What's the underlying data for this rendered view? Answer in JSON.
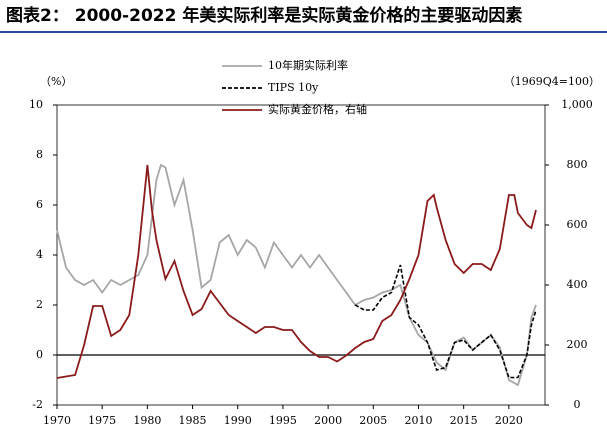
{
  "chart_data": {
    "type": "line",
    "title": "图表2： 2000-2022 年美实际利率是实际黄金价格的主要驱动因素",
    "y_label": "（%）",
    "y2_label": "（1969Q4=100）",
    "xlim": [
      1970,
      2024
    ],
    "xticks": [
      1970,
      1975,
      1980,
      1985,
      1990,
      1995,
      2000,
      2005,
      2010,
      2015,
      2020
    ],
    "ylim": [
      -2,
      10
    ],
    "yticks": [
      -2,
      0,
      2,
      4,
      6,
      8,
      10
    ],
    "y2lim": [
      0,
      1000
    ],
    "y2ticks": [
      0,
      200,
      400,
      600,
      800,
      {
        "value": 1000,
        "label": "1,000"
      }
    ],
    "zero_line": true,
    "grid": false,
    "legend": "top",
    "series": [
      {
        "name": "10年期实际利率",
        "color": "#a6a6a6",
        "dash": false,
        "x": [
          1970,
          1971,
          1972,
          1973,
          1974,
          1975,
          1976,
          1977,
          1978,
          1979,
          1980,
          1981,
          1981.5,
          1982,
          1983,
          1984,
          1985,
          1986,
          1987,
          1988,
          1989,
          1990,
          1991,
          1992,
          1993,
          1994,
          1995,
          1996,
          1997,
          1998,
          1999,
          2000,
          2001,
          2002,
          2003,
          2004,
          2005,
          2006,
          2007,
          2008,
          2009,
          2010,
          2011,
          2012,
          2013,
          2014,
          2015,
          2016,
          2017,
          2018,
          2019,
          2020,
          2021,
          2022,
          2022.5,
          2023
        ],
        "values": [
          5,
          3.5,
          3,
          2.8,
          3,
          2.5,
          3,
          2.8,
          3,
          3.2,
          4,
          7,
          7.6,
          7.5,
          6,
          7,
          5,
          2.7,
          3,
          4.5,
          4.8,
          4,
          4.6,
          4.3,
          3.5,
          4.5,
          4,
          3.5,
          4,
          3.5,
          4,
          3.5,
          3,
          2.5,
          2,
          2.2,
          2.3,
          2.5,
          2.6,
          2.8,
          1.5,
          0.8,
          0.5,
          -0.3,
          -0.6,
          0.5,
          0.7,
          0.2,
          0.5,
          0.8,
          0.3,
          -1,
          -1.2,
          0,
          1.5,
          2
        ]
      },
      {
        "name": "TIPS 10y",
        "color": "#000000",
        "dash": true,
        "x": [
          2003,
          2004,
          2005,
          2006,
          2007,
          2008,
          2009,
          2010,
          2011,
          2012,
          2013,
          2014,
          2015,
          2016,
          2017,
          2018,
          2019,
          2020,
          2021,
          2022,
          2022.5,
          2023
        ],
        "values": [
          2,
          1.8,
          1.8,
          2.3,
          2.5,
          3.6,
          1.5,
          1.2,
          0.5,
          -0.6,
          -0.5,
          0.5,
          0.6,
          0.2,
          0.5,
          0.8,
          0.2,
          -0.9,
          -0.9,
          0,
          1.2,
          1.8
        ]
      },
      {
        "name": "实际黄金价格，右轴",
        "color": "#8b1a1a",
        "dash": false,
        "axis": "y2",
        "x": [
          1970,
          1972,
          1973,
          1974,
          1975,
          1976,
          1977,
          1978,
          1979,
          1980,
          1980.5,
          1981,
          1982,
          1983,
          1984,
          1985,
          1986,
          1987,
          1988,
          1989,
          1990,
          1991,
          1992,
          1993,
          1994,
          1995,
          1996,
          1997,
          1998,
          1999,
          2000,
          2001,
          2002,
          2003,
          2004,
          2005,
          2006,
          2007,
          2008,
          2009,
          2010,
          2011,
          2011.7,
          2012,
          2013,
          2014,
          2015,
          2016,
          2017,
          2018,
          2019,
          2020,
          2020.6,
          2021,
          2022,
          2022.5,
          2023
        ],
        "values": [
          90,
          100,
          200,
          330,
          330,
          230,
          250,
          300,
          500,
          800,
          650,
          550,
          420,
          480,
          380,
          300,
          320,
          380,
          340,
          300,
          280,
          260,
          240,
          260,
          260,
          250,
          250,
          210,
          180,
          160,
          160,
          145,
          165,
          190,
          210,
          220,
          280,
          300,
          350,
          420,
          500,
          680,
          700,
          660,
          550,
          470,
          440,
          470,
          470,
          450,
          520,
          700,
          700,
          640,
          600,
          590,
          650
        ]
      }
    ]
  }
}
